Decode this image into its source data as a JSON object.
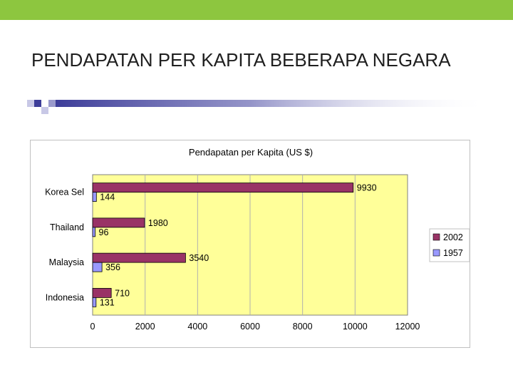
{
  "slide": {
    "title": "PENDAPATAN PER KAPITA BEBERAPA NEGARA",
    "accent_color": "#8dc63f",
    "rule_color": "#3d3d99"
  },
  "chart_data": {
    "type": "bar",
    "orientation": "horizontal",
    "title": "Pendapatan per Kapita (US $)",
    "xlabel": "",
    "ylabel": "",
    "categories": [
      "Korea Sel",
      "Thailand",
      "Malaysia",
      "Indonesia"
    ],
    "series": [
      {
        "name": "2002",
        "values": [
          9930,
          1980,
          3540,
          710
        ],
        "color": "#993366"
      },
      {
        "name": "1957",
        "values": [
          144,
          96,
          356,
          131
        ],
        "color": "#9999ff"
      }
    ],
    "xlim": [
      0,
      12000
    ],
    "xticks": [
      0,
      2000,
      4000,
      6000,
      8000,
      10000,
      12000
    ],
    "grid": true,
    "legend": "right",
    "plot_background": "#ffff99"
  }
}
